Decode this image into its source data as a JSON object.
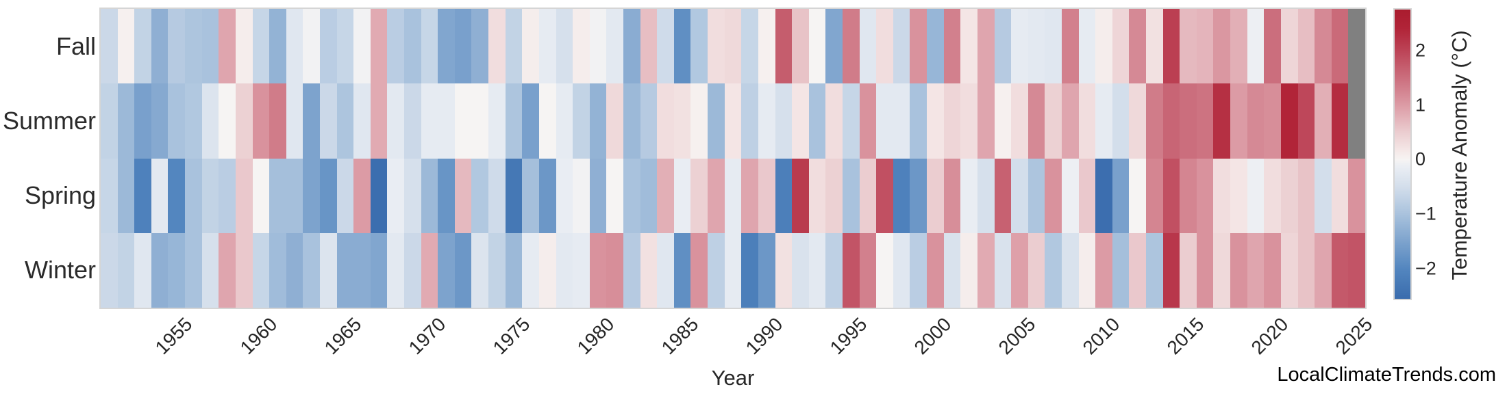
{
  "watermark": "LocalClimateTrends.com",
  "chart_data": {
    "type": "heatmap",
    "xlabel": "Year",
    "rows": [
      "Fall",
      "Summer",
      "Spring",
      "Winter"
    ],
    "years": [
      1951,
      1952,
      1953,
      1954,
      1955,
      1956,
      1957,
      1958,
      1959,
      1960,
      1961,
      1962,
      1963,
      1964,
      1965,
      1966,
      1967,
      1968,
      1969,
      1970,
      1971,
      1972,
      1973,
      1974,
      1975,
      1976,
      1977,
      1978,
      1979,
      1980,
      1981,
      1982,
      1983,
      1984,
      1985,
      1986,
      1987,
      1988,
      1989,
      1990,
      1991,
      1992,
      1993,
      1994,
      1995,
      1996,
      1997,
      1998,
      1999,
      2000,
      2001,
      2002,
      2003,
      2004,
      2005,
      2006,
      2007,
      2008,
      2009,
      2010,
      2011,
      2012,
      2013,
      2014,
      2015,
      2016,
      2017,
      2018,
      2019,
      2020,
      2021,
      2022,
      2023,
      2024,
      2025
    ],
    "xticks": [
      1955,
      1960,
      1965,
      1970,
      1975,
      1980,
      1985,
      1990,
      1995,
      2000,
      2005,
      2010,
      2015,
      2020,
      2025
    ],
    "values": {
      "Fall": [
        -0.6,
        0.05,
        -0.7,
        -1.3,
        -0.85,
        -0.95,
        -1.0,
        0.9,
        0.1,
        -0.65,
        -1.25,
        -0.3,
        -0.05,
        -0.8,
        -0.65,
        -0.05,
        0.85,
        -0.8,
        -1.0,
        -0.65,
        -1.45,
        -1.55,
        -1.3,
        0.3,
        -0.7,
        0.1,
        -0.2,
        -0.45,
        0.1,
        -0.05,
        -0.25,
        -1.35,
        0.65,
        -0.55,
        -1.85,
        -0.9,
        0.3,
        0.35,
        -0.65,
        0.05,
        1.7,
        0.6,
        0.0,
        -1.45,
        1.35,
        -0.3,
        0.3,
        -0.6,
        1.1,
        -1.2,
        1.3,
        0.2,
        0.9,
        -0.85,
        -0.2,
        -0.25,
        -0.3,
        1.3,
        -0.2,
        0.1,
        0.4,
        1.2,
        0.25,
        2.05,
        0.7,
        0.75,
        1.05,
        0.8,
        -0.1,
        1.5,
        0.4,
        0.65,
        1.2,
        1.55,
        null
      ],
      "Summer": [
        -0.7,
        -1.15,
        -1.55,
        -1.4,
        -1.0,
        -0.9,
        -0.35,
        0.0,
        0.45,
        1.1,
        1.35,
        -0.3,
        -1.5,
        -0.6,
        -0.95,
        -0.3,
        0.85,
        -0.25,
        -0.6,
        -0.2,
        -0.2,
        0.0,
        0.0,
        -0.2,
        -0.95,
        -1.55,
        0.0,
        -0.2,
        -0.7,
        -1.25,
        0.35,
        -1.15,
        -0.85,
        0.3,
        0.25,
        0.05,
        -1.15,
        0.2,
        -0.75,
        -0.2,
        -0.45,
        0.2,
        -1.0,
        0.3,
        -0.65,
        1.1,
        -0.25,
        -0.25,
        -1.0,
        0.2,
        0.4,
        0.3,
        0.9,
        0.05,
        0.3,
        1.2,
        0.45,
        0.9,
        0.3,
        -0.2,
        -0.5,
        0.35,
        1.35,
        1.6,
        1.5,
        1.45,
        2.25,
        1.0,
        1.2,
        1.15,
        2.4,
        1.95,
        0.8,
        2.3,
        null
      ],
      "Spring": [
        -0.65,
        -1.15,
        -2.1,
        -0.25,
        -2.0,
        -1.0,
        -0.7,
        -0.8,
        0.55,
        0.0,
        -1.05,
        -1.05,
        -1.5,
        -1.75,
        -0.6,
        1.0,
        -2.5,
        -0.15,
        -0.45,
        -1.15,
        -1.75,
        0.7,
        -0.9,
        -0.55,
        -2.3,
        -1.05,
        -1.7,
        -0.15,
        -0.05,
        -1.3,
        0.0,
        -1.0,
        -1.1,
        0.8,
        -0.15,
        0.45,
        0.9,
        -0.2,
        0.9,
        0.55,
        -2.15,
        2.1,
        0.3,
        0.45,
        -1.0,
        0.5,
        1.85,
        -2.1,
        -1.7,
        0.5,
        1.15,
        -0.15,
        -0.45,
        1.65,
        -0.5,
        -0.95,
        1.1,
        -0.1,
        0.55,
        -2.5,
        -1.55,
        0.0,
        1.25,
        1.85,
        1.25,
        1.1,
        0.3,
        0.2,
        -0.1,
        0.3,
        0.45,
        0.6,
        -0.5,
        0.3,
        1.1
      ],
      "Winter": [
        -0.6,
        -0.7,
        -0.3,
        -1.3,
        -1.2,
        -1.0,
        -0.45,
        0.9,
        0.55,
        -0.65,
        -1.1,
        -1.3,
        -1.0,
        -0.35,
        -1.35,
        -1.35,
        -1.45,
        -0.25,
        -0.6,
        0.85,
        -1.5,
        -1.7,
        -0.35,
        -0.7,
        -1.15,
        -0.2,
        0.1,
        -0.25,
        -0.2,
        1.1,
        1.15,
        -0.85,
        0.25,
        -0.3,
        -1.85,
        1.1,
        -0.75,
        -0.2,
        -2.15,
        -1.7,
        0.25,
        -0.4,
        -0.25,
        -0.75,
        1.8,
        1.3,
        0.0,
        -0.3,
        -0.8,
        1.1,
        -0.4,
        0.1,
        0.85,
        -0.4,
        0.95,
        0.5,
        -0.9,
        -0.4,
        0.1,
        1.0,
        -1.05,
        0.55,
        -0.95,
        2.15,
        0.5,
        1.1,
        0.35,
        1.1,
        0.9,
        1.1,
        0.4,
        0.6,
        0.9,
        1.75,
        1.8
      ]
    },
    "missing_color": "#808080",
    "colorbar": {
      "label": "Temperature Anomaly (°C)",
      "vmin": -2.55,
      "vmax": 2.75,
      "ticks": [
        {
          "label": "2",
          "v": 2
        },
        {
          "label": "1",
          "v": 1
        },
        {
          "label": "0",
          "v": 0
        },
        {
          "label": "−1",
          "v": -1
        },
        {
          "label": "−2",
          "v": -2
        }
      ],
      "stops": [
        [
          -2.55,
          "#3a6cad"
        ],
        [
          -2.0,
          "#5386bf"
        ],
        [
          -1.5,
          "#7da3cd"
        ],
        [
          -1.0,
          "#a9c2dd"
        ],
        [
          -0.5,
          "#d3deeb"
        ],
        [
          -0.15,
          "#e9edf3"
        ],
        [
          0,
          "#f6f4f3"
        ],
        [
          0.15,
          "#f5e9e8"
        ],
        [
          0.5,
          "#ebcdd0"
        ],
        [
          1.0,
          "#dc9ba5"
        ],
        [
          1.5,
          "#cb6e7d"
        ],
        [
          2.0,
          "#bc4356"
        ],
        [
          2.4,
          "#b12438"
        ],
        [
          2.75,
          "#aa1c2e"
        ]
      ]
    }
  }
}
